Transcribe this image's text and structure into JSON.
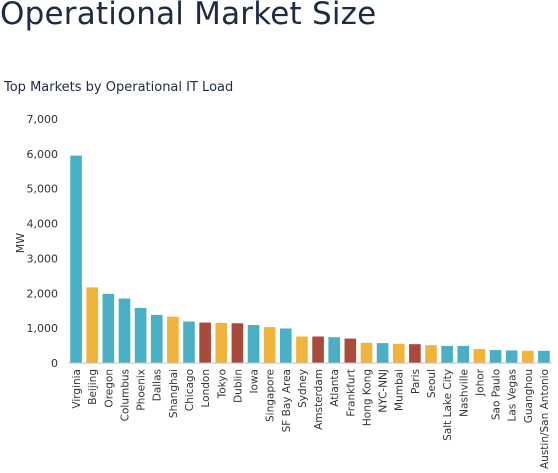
{
  "page": {
    "title": "Operational Market Size",
    "subtitle": "Top Markets by Operational IT Load"
  },
  "chart_data": {
    "type": "bar",
    "title": "Top Markets by Operational IT Load",
    "xlabel": "",
    "ylabel": "MW",
    "ylim": [
      0,
      7000
    ],
    "yticks": [
      0,
      1000,
      2000,
      3000,
      4000,
      5000,
      6000,
      7000
    ],
    "ytick_labels": [
      "0",
      "1,000",
      "2,000",
      "3,000",
      "4,000",
      "5,000",
      "6,000",
      "7,000"
    ],
    "grid": false,
    "legend": "none",
    "categories": [
      "Virginia",
      "Beijing",
      "Oregon",
      "Columbus",
      "Phoenix",
      "Dallas",
      "Shanghai",
      "Chicago",
      "London",
      "Tokyo",
      "Dublin",
      "Iowa",
      "Singapore",
      "SF Bay Area",
      "Sydney",
      "Amsterdam",
      "Atlanta",
      "Frankfurt",
      "Hong Kong",
      "NYC-NNJ",
      "Mumbai",
      "Paris",
      "Seoul",
      "Salt Lake City",
      "Nashville",
      "Johor",
      "Sao Paulo",
      "Las Vegas",
      "Guanghou",
      "Austin/San Antonio"
    ],
    "values": [
      5950,
      2170,
      1980,
      1850,
      1580,
      1380,
      1330,
      1190,
      1160,
      1150,
      1140,
      1090,
      1030,
      990,
      760,
      760,
      740,
      700,
      580,
      570,
      550,
      540,
      510,
      490,
      490,
      400,
      370,
      360,
      350,
      350
    ],
    "bar_colors": [
      "#4aafc4",
      "#f0b43c",
      "#4aafc4",
      "#4aafc4",
      "#4aafc4",
      "#4aafc4",
      "#f0b43c",
      "#4aafc4",
      "#a84b3c",
      "#f0b43c",
      "#a84b3c",
      "#4aafc4",
      "#f0b43c",
      "#4aafc4",
      "#f0b43c",
      "#a84b3c",
      "#4aafc4",
      "#a84b3c",
      "#f0b43c",
      "#4aafc4",
      "#f0b43c",
      "#a84b3c",
      "#f0b43c",
      "#4aafc4",
      "#4aafc4",
      "#f0b43c",
      "#4aafc4",
      "#4aafc4",
      "#f0b43c",
      "#4aafc4"
    ]
  }
}
